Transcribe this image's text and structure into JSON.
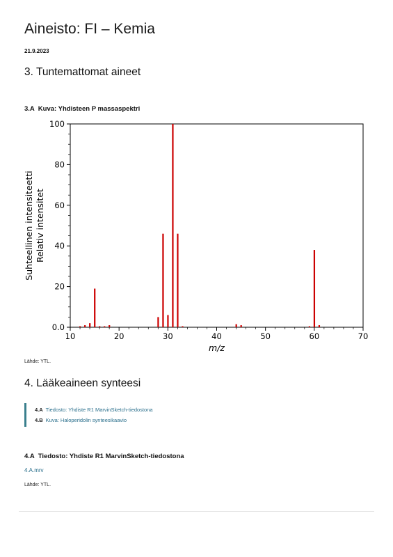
{
  "header": {
    "title": "Aineisto: FI – Kemia",
    "date": "21.9.2023"
  },
  "section3": {
    "heading": "3. Tuntemattomat aineet",
    "figure": {
      "number": "3.A",
      "caption": "Kuva: Yhdisteen P massaspektri"
    },
    "source": "Lähde: YTL."
  },
  "chart_data": {
    "type": "bar",
    "title": "",
    "xlabel": "m/z",
    "ylabel_lines": [
      "Suhteellinen intensiteetti",
      "Relativ intensitet"
    ],
    "xlim": [
      10,
      70
    ],
    "ylim": [
      0,
      100
    ],
    "x_ticks": [
      "10",
      "20",
      "30",
      "40",
      "50",
      "60",
      "70"
    ],
    "y_ticks": [
      "0.0",
      "20",
      "40",
      "60",
      "80",
      "100"
    ],
    "bar_color": "#cc0000",
    "peaks": [
      {
        "x": 12,
        "y": 0.5
      },
      {
        "x": 13,
        "y": 1
      },
      {
        "x": 14,
        "y": 2
      },
      {
        "x": 15,
        "y": 19
      },
      {
        "x": 16,
        "y": 0.5
      },
      {
        "x": 17,
        "y": 0.5
      },
      {
        "x": 18,
        "y": 1
      },
      {
        "x": 28,
        "y": 5
      },
      {
        "x": 29,
        "y": 46
      },
      {
        "x": 30,
        "y": 6
      },
      {
        "x": 31,
        "y": 100
      },
      {
        "x": 32,
        "y": 46
      },
      {
        "x": 33,
        "y": 0.5
      },
      {
        "x": 44,
        "y": 1.5
      },
      {
        "x": 45,
        "y": 1
      },
      {
        "x": 59,
        "y": 0.5
      },
      {
        "x": 60,
        "y": 38
      },
      {
        "x": 61,
        "y": 1
      }
    ],
    "grid": false
  },
  "section4": {
    "heading": "4. Lääkeaineen synteesi",
    "toc": [
      {
        "num": "4.A",
        "label": "Tiedosto: Yhdiste R1 MarvinSketch-tiedostona"
      },
      {
        "num": "4.B",
        "label": "Kuva: Haloperidolin synteesikaavio"
      }
    ],
    "subsection": {
      "number": "4.A",
      "title": "Tiedosto: Yhdiste R1 MarvinSketch-tiedostona",
      "file_link": "4.A.mrv",
      "source": "Lähde: YTL."
    }
  }
}
